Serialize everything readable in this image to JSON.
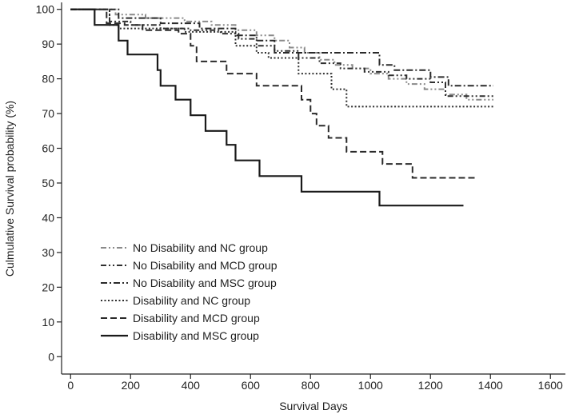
{
  "chart_data": {
    "type": "line",
    "title": "",
    "xlabel": "Survival Days",
    "ylabel": "Culmulative Survival probability (%)",
    "xlim": [
      -30,
      1650
    ],
    "ylim": [
      -5,
      102
    ],
    "xticks": [
      0,
      200,
      400,
      600,
      800,
      1000,
      1200,
      1400,
      1600
    ],
    "yticks": [
      0,
      10,
      20,
      30,
      40,
      50,
      60,
      70,
      80,
      90,
      100
    ],
    "legend_position": "bottom-left",
    "series": [
      {
        "name": "No Disability and NC group",
        "color": "#8a8a8a",
        "dash": "dash-dot-dot",
        "points": [
          [
            0,
            100
          ],
          [
            150,
            100
          ],
          [
            150,
            98.5
          ],
          [
            250,
            98.5
          ],
          [
            250,
            97.5
          ],
          [
            380,
            97.5
          ],
          [
            380,
            96.5
          ],
          [
            470,
            96.5
          ],
          [
            470,
            95.5
          ],
          [
            550,
            95.5
          ],
          [
            550,
            94
          ],
          [
            620,
            94
          ],
          [
            620,
            92.5
          ],
          [
            680,
            92.5
          ],
          [
            680,
            91
          ],
          [
            730,
            91
          ],
          [
            730,
            89
          ],
          [
            780,
            89
          ],
          [
            780,
            87.5
          ],
          [
            830,
            87.5
          ],
          [
            830,
            85.5
          ],
          [
            880,
            85.5
          ],
          [
            880,
            84
          ],
          [
            940,
            84
          ],
          [
            940,
            83
          ],
          [
            1000,
            83
          ],
          [
            1000,
            81.5
          ],
          [
            1060,
            81.5
          ],
          [
            1060,
            80
          ],
          [
            1120,
            80
          ],
          [
            1120,
            78.5
          ],
          [
            1180,
            78.5
          ],
          [
            1180,
            77
          ],
          [
            1250,
            77
          ],
          [
            1250,
            75.5
          ],
          [
            1320,
            75.5
          ],
          [
            1320,
            74
          ],
          [
            1410,
            74
          ]
        ]
      },
      {
        "name": "No Disability and MCD group",
        "color": "#303030",
        "dash": "dash-dot-dot",
        "points": [
          [
            0,
            100
          ],
          [
            130,
            100
          ],
          [
            130,
            96.5
          ],
          [
            200,
            96.5
          ],
          [
            200,
            95.5
          ],
          [
            300,
            95.5
          ],
          [
            300,
            94.5
          ],
          [
            400,
            94.5
          ],
          [
            400,
            94
          ],
          [
            500,
            94
          ],
          [
            500,
            93
          ],
          [
            560,
            93
          ],
          [
            560,
            91.5
          ],
          [
            620,
            91.5
          ],
          [
            620,
            89.5
          ],
          [
            680,
            89.5
          ],
          [
            680,
            88
          ],
          [
            760,
            88
          ],
          [
            760,
            86
          ],
          [
            830,
            86
          ],
          [
            830,
            84.5
          ],
          [
            900,
            84.5
          ],
          [
            900,
            83
          ],
          [
            980,
            83
          ],
          [
            980,
            82
          ],
          [
            1060,
            82
          ],
          [
            1060,
            81
          ],
          [
            1120,
            81
          ],
          [
            1120,
            80
          ],
          [
            1200,
            80
          ],
          [
            1200,
            79
          ],
          [
            1250,
            79
          ],
          [
            1250,
            75
          ],
          [
            1410,
            75
          ]
        ]
      },
      {
        "name": "No Disability and MSC group",
        "color": "#2a2a2a",
        "dash": "dash-dot",
        "points": [
          [
            0,
            100
          ],
          [
            160,
            100
          ],
          [
            160,
            97.5
          ],
          [
            300,
            97.5
          ],
          [
            300,
            96
          ],
          [
            430,
            96
          ],
          [
            430,
            94.5
          ],
          [
            550,
            94.5
          ],
          [
            550,
            92.5
          ],
          [
            620,
            92.5
          ],
          [
            620,
            91
          ],
          [
            680,
            91
          ],
          [
            680,
            87.5
          ],
          [
            1030,
            87.5
          ],
          [
            1030,
            84
          ],
          [
            1080,
            84
          ],
          [
            1080,
            82.5
          ],
          [
            1200,
            82.5
          ],
          [
            1200,
            80.5
          ],
          [
            1260,
            80.5
          ],
          [
            1260,
            78
          ],
          [
            1410,
            78
          ]
        ]
      },
      {
        "name": "Disability and NC group",
        "color": "#2e2e2e",
        "dash": "dotted",
        "points": [
          [
            0,
            100
          ],
          [
            130,
            100
          ],
          [
            130,
            95.5
          ],
          [
            160,
            95.5
          ],
          [
            160,
            94.5
          ],
          [
            380,
            94.5
          ],
          [
            380,
            93.5
          ],
          [
            550,
            93.5
          ],
          [
            550,
            89.5
          ],
          [
            620,
            89.5
          ],
          [
            620,
            87.5
          ],
          [
            660,
            87.5
          ],
          [
            660,
            86
          ],
          [
            760,
            86
          ],
          [
            760,
            81.5
          ],
          [
            870,
            81.5
          ],
          [
            870,
            77
          ],
          [
            920,
            77
          ],
          [
            920,
            72
          ],
          [
            1410,
            72
          ]
        ]
      },
      {
        "name": "Disability and MCD group",
        "color": "#2a2a2a",
        "dash": "dashed",
        "points": [
          [
            0,
            100
          ],
          [
            120,
            100
          ],
          [
            120,
            96
          ],
          [
            180,
            96
          ],
          [
            180,
            95.5
          ],
          [
            240,
            95.5
          ],
          [
            240,
            94
          ],
          [
            360,
            94
          ],
          [
            360,
            93
          ],
          [
            400,
            93
          ],
          [
            400,
            89.5
          ],
          [
            420,
            89.5
          ],
          [
            420,
            85
          ],
          [
            520,
            85
          ],
          [
            520,
            81.5
          ],
          [
            620,
            81.5
          ],
          [
            620,
            78
          ],
          [
            770,
            78
          ],
          [
            770,
            74
          ],
          [
            800,
            74
          ],
          [
            800,
            70
          ],
          [
            820,
            70
          ],
          [
            820,
            66.5
          ],
          [
            860,
            66.5
          ],
          [
            860,
            63
          ],
          [
            920,
            63
          ],
          [
            920,
            59
          ],
          [
            1040,
            59
          ],
          [
            1040,
            55.5
          ],
          [
            1140,
            55.5
          ],
          [
            1140,
            51.5
          ],
          [
            1350,
            51.5
          ]
        ]
      },
      {
        "name": "Disability and MSC group",
        "color": "#1a1a1a",
        "dash": "solid",
        "points": [
          [
            0,
            100
          ],
          [
            80,
            100
          ],
          [
            80,
            95.5
          ],
          [
            160,
            95.5
          ],
          [
            160,
            91
          ],
          [
            190,
            91
          ],
          [
            190,
            87
          ],
          [
            290,
            87
          ],
          [
            290,
            82.5
          ],
          [
            300,
            82.5
          ],
          [
            300,
            78
          ],
          [
            350,
            78
          ],
          [
            350,
            74
          ],
          [
            400,
            74
          ],
          [
            400,
            69.5
          ],
          [
            450,
            69.5
          ],
          [
            450,
            65
          ],
          [
            520,
            65
          ],
          [
            520,
            61
          ],
          [
            550,
            61
          ],
          [
            550,
            56.5
          ],
          [
            630,
            56.5
          ],
          [
            630,
            52
          ],
          [
            770,
            52
          ],
          [
            770,
            47.5
          ],
          [
            1030,
            47.5
          ],
          [
            1030,
            43.5
          ],
          [
            1310,
            43.5
          ]
        ]
      }
    ]
  }
}
